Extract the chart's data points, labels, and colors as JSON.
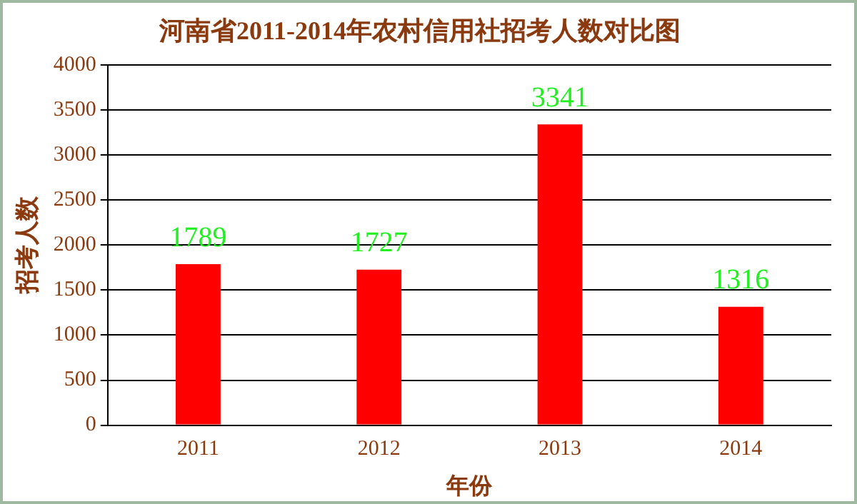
{
  "chart_data": {
    "type": "bar",
    "title": "河南省2011-2014年农村信用社招考人数对比图",
    "xlabel": "年份",
    "ylabel": "招考人数",
    "categories": [
      "2011",
      "2012",
      "2013",
      "2014"
    ],
    "values": [
      1789,
      1727,
      3341,
      1316
    ],
    "color": "#ff0000",
    "ylim": [
      0,
      4000
    ],
    "yticks": [
      0,
      500,
      1000,
      1500,
      2000,
      2500,
      3000,
      3500,
      4000
    ],
    "grid": "y",
    "data_labels": true
  }
}
